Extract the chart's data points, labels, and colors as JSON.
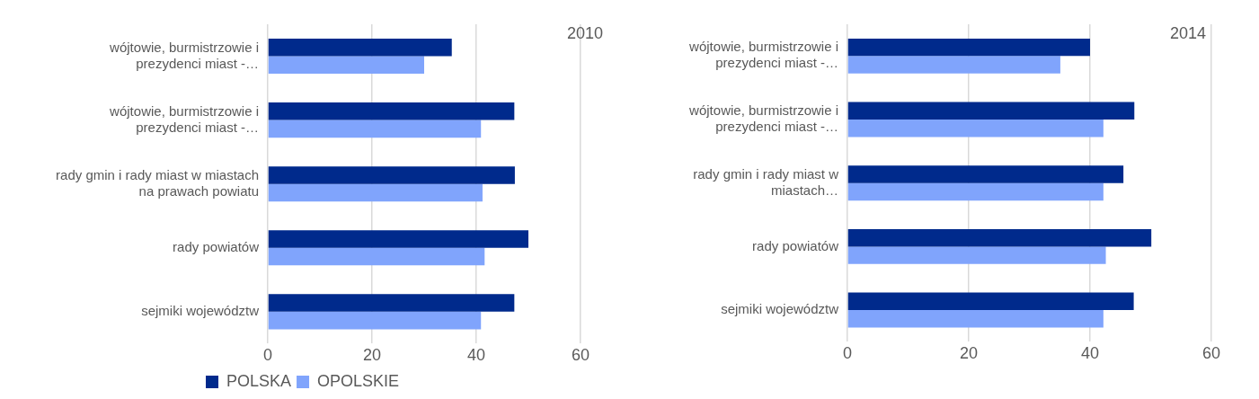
{
  "chart_data": [
    {
      "type": "bar",
      "orientation": "horizontal",
      "title": "2010",
      "categories": [
        "wójtowie, burmistrzowie i prezydenci miast -…",
        "wójtowie, burmistrzowie i prezydenci miast -…",
        "rady gmin i rady miast w miastach na prawach powiatu",
        "rady powiatów",
        "sejmiki województw"
      ],
      "series": [
        {
          "name": "POLSKA",
          "color": "#002a8c",
          "values": [
            35.3,
            47.3,
            47.4,
            50.0,
            47.3
          ]
        },
        {
          "name": "OPOLSKIE",
          "color": "#80a4fc",
          "values": [
            30.0,
            40.9,
            41.2,
            41.6,
            40.9
          ]
        }
      ],
      "xlim": [
        0,
        60
      ],
      "xticks": [
        0,
        20,
        40,
        60
      ],
      "grid": "x",
      "legend": "bottom left"
    },
    {
      "type": "bar",
      "orientation": "horizontal",
      "title": "2014",
      "categories": [
        "wójtowie, burmistrzowie i prezydenci miast -…",
        "wójtowie, burmistrzowie i prezydenci miast -…",
        "rady gmin i rady miast w miastach…",
        "rady powiatów",
        "sejmiki województw"
      ],
      "series": [
        {
          "color": "#002a8c",
          "values": [
            40.0,
            47.3,
            45.5,
            50.1,
            47.2
          ]
        },
        {
          "color": "#80a4fc",
          "values": [
            35.1,
            42.2,
            42.2,
            42.6,
            42.2
          ]
        }
      ],
      "xlim": [
        0,
        60
      ],
      "xticks": [
        0,
        20,
        40,
        60
      ],
      "grid": "x"
    }
  ]
}
